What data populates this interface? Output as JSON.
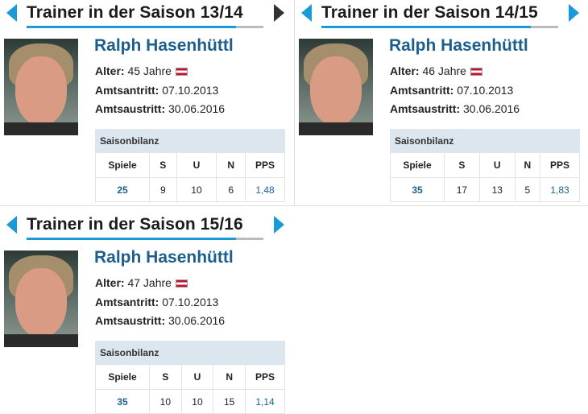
{
  "accent_color": "#1a9ad6",
  "name_color": "#1d5f8c",
  "cards": [
    {
      "title": "Trainer in der Saison 13/14",
      "prev_icon": "triangle-left-icon",
      "next_icon": "triangle-right-icon",
      "next_disabled": true,
      "name": "Ralph Hasenhüttl",
      "age_label": "Alter:",
      "age_value": "45 Jahre",
      "flag": "austria-flag-icon",
      "start_label": "Amtsantritt:",
      "start_value": "07.10.2013",
      "end_label": "Amtsaustritt:",
      "end_value": "30.06.2016",
      "table": {
        "caption": "Saisonbilanz",
        "headers": [
          "Spiele",
          "S",
          "U",
          "N",
          "PPS"
        ],
        "values": [
          "25",
          "9",
          "10",
          "6",
          "1,48"
        ]
      }
    },
    {
      "title": "Trainer in der Saison 14/15",
      "prev_icon": "triangle-left-icon",
      "next_icon": "triangle-right-icon",
      "next_disabled": false,
      "name": "Ralph Hasenhüttl",
      "age_label": "Alter:",
      "age_value": "46 Jahre",
      "flag": "austria-flag-icon",
      "start_label": "Amtsantritt:",
      "start_value": "07.10.2013",
      "end_label": "Amtsaustritt:",
      "end_value": "30.06.2016",
      "table": {
        "caption": "Saisonbilanz",
        "headers": [
          "Spiele",
          "S",
          "U",
          "N",
          "PPS"
        ],
        "values": [
          "35",
          "17",
          "13",
          "5",
          "1,83"
        ]
      }
    },
    {
      "title": "Trainer in der Saison 15/16",
      "prev_icon": "triangle-left-icon",
      "next_icon": "triangle-right-icon",
      "next_disabled": false,
      "name": "Ralph Hasenhüttl",
      "age_label": "Alter:",
      "age_value": "47 Jahre",
      "flag": "austria-flag-icon",
      "start_label": "Amtsantritt:",
      "start_value": "07.10.2013",
      "end_label": "Amtsaustritt:",
      "end_value": "30.06.2016",
      "table": {
        "caption": "Saisonbilanz",
        "headers": [
          "Spiele",
          "S",
          "U",
          "N",
          "PPS"
        ],
        "values": [
          "35",
          "10",
          "10",
          "15",
          "1,14"
        ]
      }
    }
  ]
}
